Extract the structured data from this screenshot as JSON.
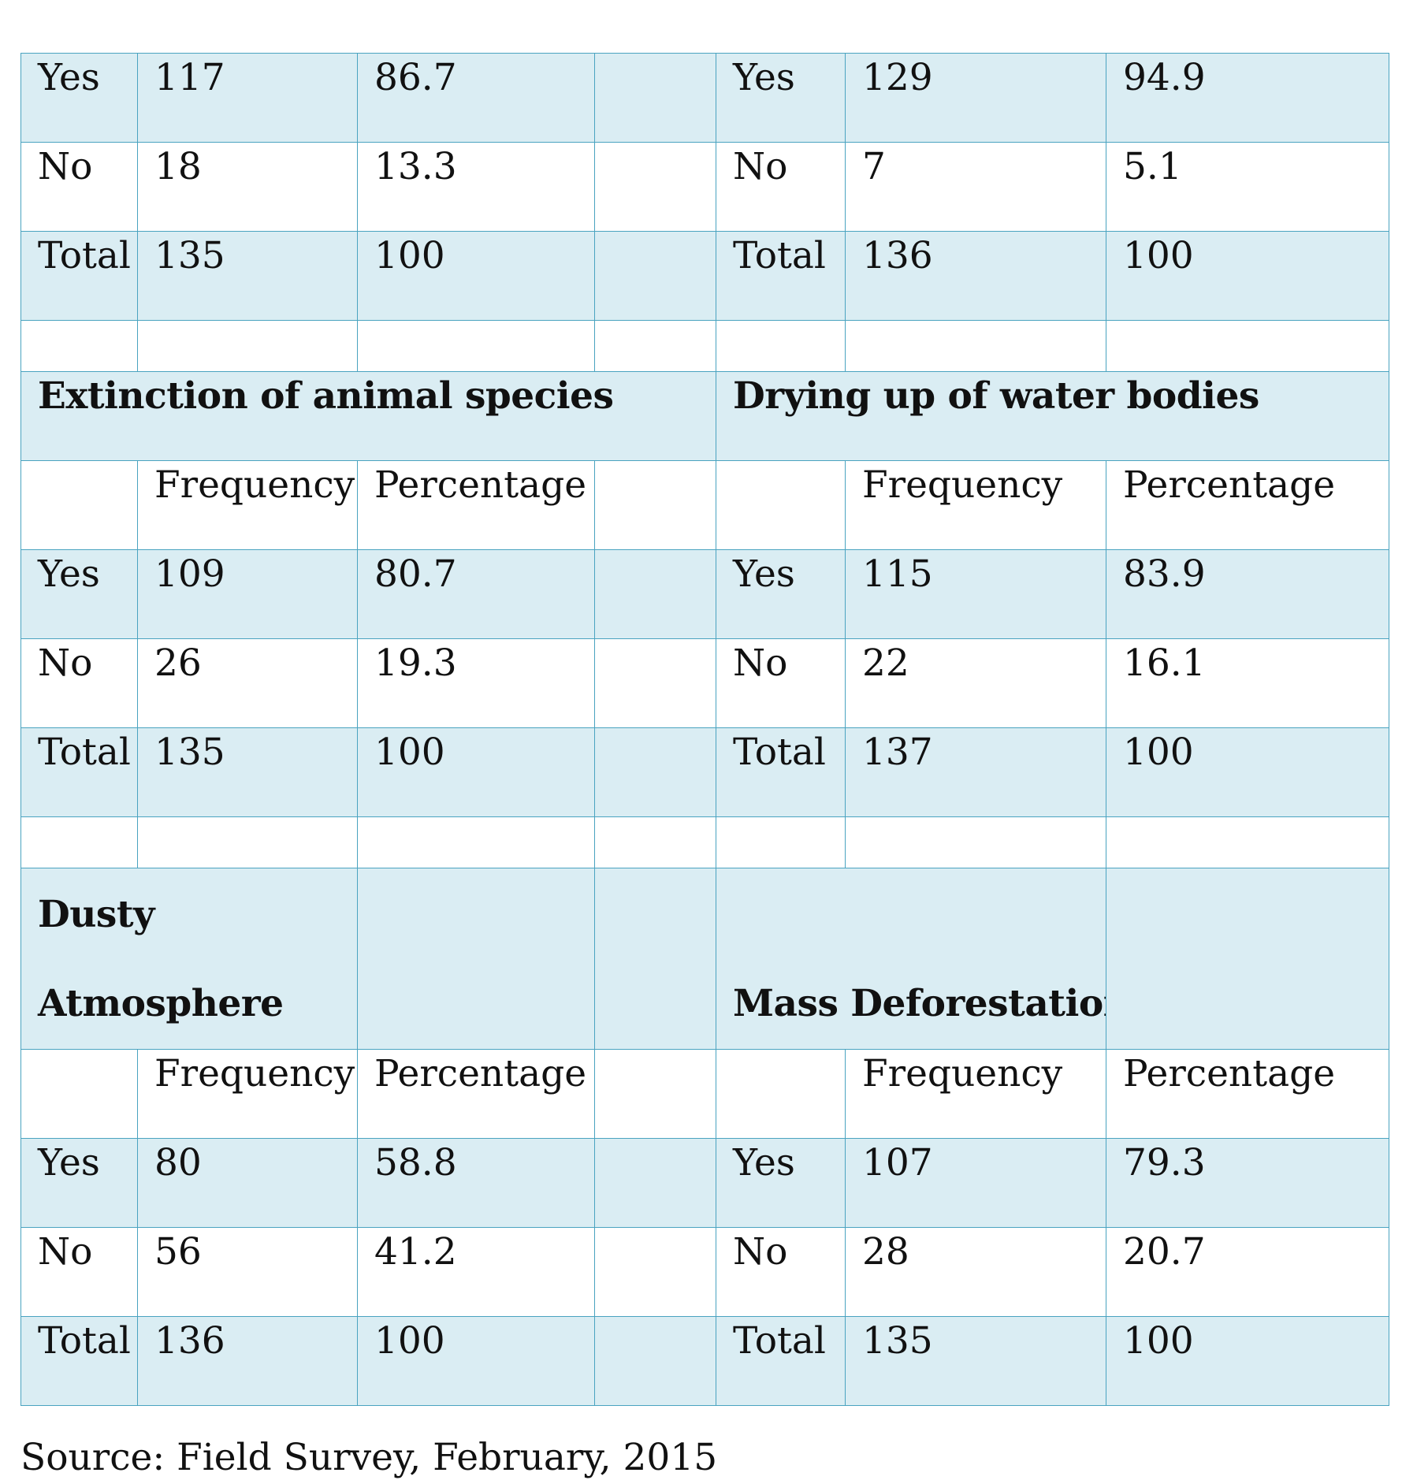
{
  "table": {
    "top_block": {
      "left": [
        {
          "label": "Yes",
          "frequency": "117",
          "percentage": "86.7"
        },
        {
          "label": "No",
          "frequency": "18",
          "percentage": "13.3"
        },
        {
          "label": "Total",
          "frequency": "135",
          "percentage": "100"
        }
      ],
      "right": [
        {
          "label": "Yes",
          "frequency": "129",
          "percentage": "94.9"
        },
        {
          "label": "No",
          "frequency": "7",
          "percentage": "5.1"
        },
        {
          "label": "Total",
          "frequency": "136",
          "percentage": "100"
        }
      ]
    },
    "section2": {
      "left_title": "Extinction of animal species",
      "right_title": "Drying up of water bodies",
      "header": {
        "frequency": "Frequency",
        "percentage": "Percentage"
      },
      "left": [
        {
          "label": "Yes",
          "frequency": "109",
          "percentage": "80.7"
        },
        {
          "label": "No",
          "frequency": "26",
          "percentage": "19.3"
        },
        {
          "label": "Total",
          "frequency": "135",
          "percentage": "100"
        }
      ],
      "right": [
        {
          "label": "Yes",
          "frequency": "115",
          "percentage": "83.9"
        },
        {
          "label": "No",
          "frequency": "22",
          "percentage": "16.1"
        },
        {
          "label": "Total",
          "frequency": "137",
          "percentage": "100"
        }
      ]
    },
    "section3": {
      "left_title_line1": "Dusty",
      "left_title_line2": "Atmosphere",
      "right_title": "Mass Deforestation",
      "header": {
        "frequency": "Frequency",
        "percentage": "Percentage"
      },
      "left": [
        {
          "label": "Yes",
          "frequency": "80",
          "percentage": "58.8"
        },
        {
          "label": "No",
          "frequency": "56",
          "percentage": "41.2"
        },
        {
          "label": "Total",
          "frequency": "136",
          "percentage": "100"
        }
      ],
      "right": [
        {
          "label": "Yes",
          "frequency": "107",
          "percentage": "79.3"
        },
        {
          "label": "No",
          "frequency": "28",
          "percentage": "20.7"
        },
        {
          "label": "Total",
          "frequency": "135",
          "percentage": "100"
        }
      ]
    }
  },
  "source_note": "Source: Field Survey, February, 2015"
}
